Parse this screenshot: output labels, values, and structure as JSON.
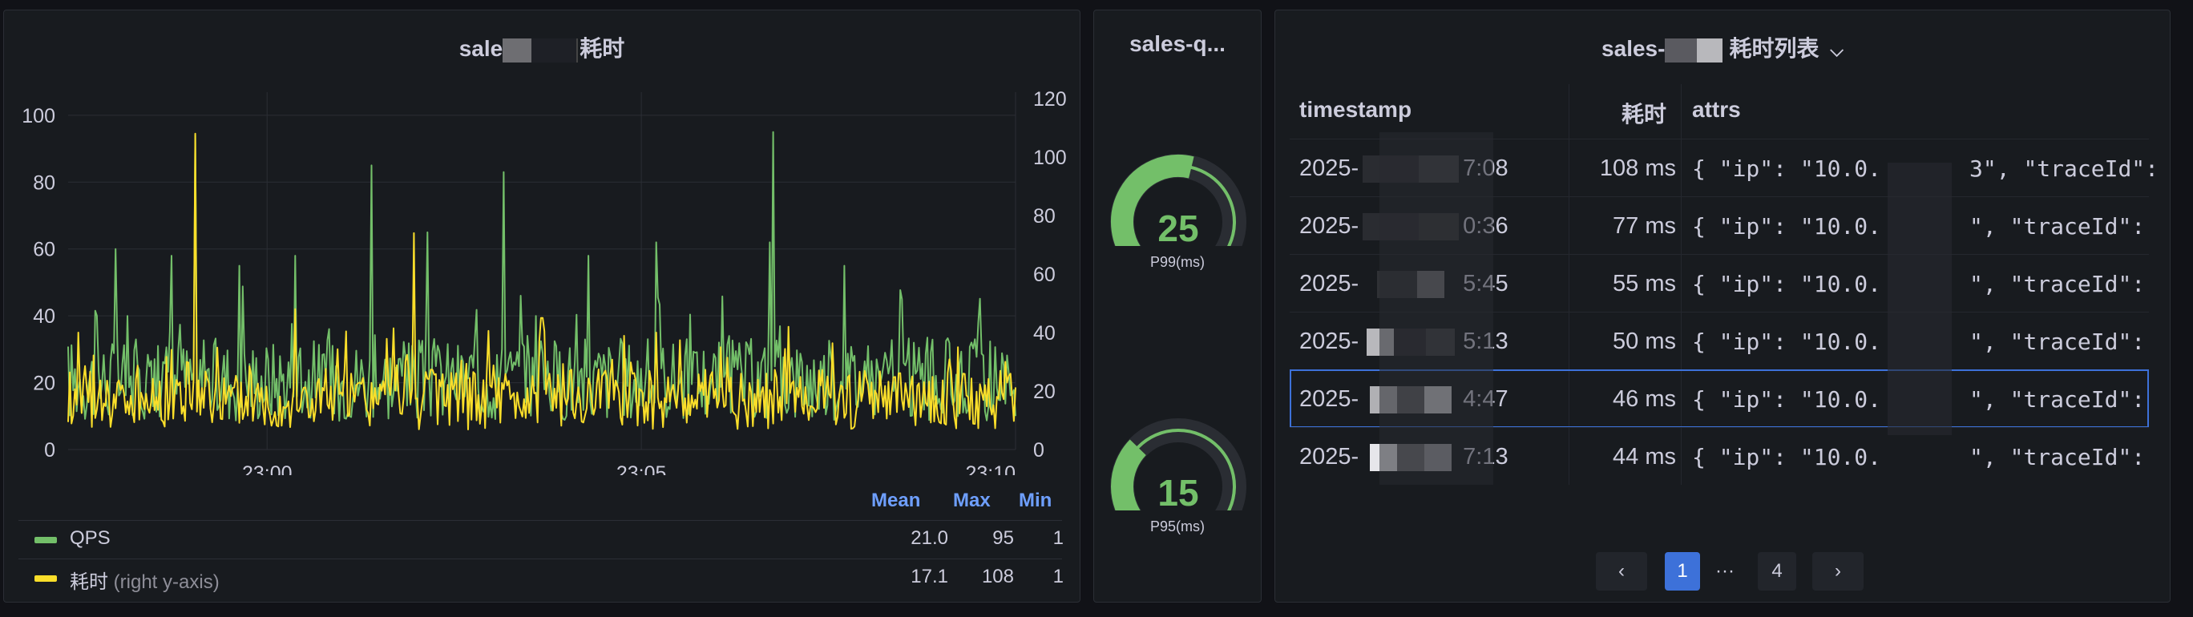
{
  "colors": {
    "qps": "#73bf69",
    "latency": "#fade2a",
    "accent": "#3d71d9",
    "gauge": "#73bf69"
  },
  "chart_panel": {
    "title_prefix": "sale",
    "title_suffix": "耗时",
    "legend_headers": {
      "mean": "Mean",
      "max": "Max",
      "min": "Min"
    },
    "legend": [
      {
        "name": "QPS",
        "suffix": "",
        "mean": "21.0",
        "max": "95",
        "min": "1",
        "color": "#73bf69"
      },
      {
        "name": "耗时",
        "suffix": "(right y-axis)",
        "mean": "17.1",
        "max": "108",
        "min": "1",
        "color": "#fade2a"
      }
    ]
  },
  "chart_data": {
    "type": "line",
    "title": "sale… 耗时",
    "x_ticks": [
      "23:00",
      "23:05",
      "23:10"
    ],
    "left_axis": {
      "ticks": [
        "0",
        "20",
        "40",
        "60",
        "80",
        "100"
      ],
      "ylim": [
        0,
        105
      ]
    },
    "right_axis": {
      "ticks": [
        "0",
        "20",
        "40",
        "60",
        "80",
        "100",
        "120"
      ],
      "ylim": [
        0,
        120
      ]
    },
    "series": [
      {
        "name": "QPS",
        "axis": "left",
        "mean": 21.0,
        "max": 95,
        "min": 1,
        "spikes": [
          [
            0.03,
            40
          ],
          [
            0.05,
            60
          ],
          [
            0.11,
            58
          ],
          [
            0.135,
            94
          ],
          [
            0.18,
            55
          ],
          [
            0.24,
            58
          ],
          [
            0.32,
            85
          ],
          [
            0.38,
            65
          ],
          [
            0.46,
            83
          ],
          [
            0.55,
            58
          ],
          [
            0.62,
            62
          ],
          [
            0.74,
            62
          ],
          [
            0.745,
            95
          ],
          [
            0.82,
            55
          ],
          [
            0.88,
            45
          ],
          [
            0.96,
            38
          ]
        ]
      },
      {
        "name": "耗时",
        "axis": "right",
        "mean": 17.1,
        "max": 108,
        "min": 1,
        "spikes": [
          [
            0.01,
            40
          ],
          [
            0.135,
            108
          ],
          [
            0.24,
            48
          ],
          [
            0.365,
            74
          ],
          [
            0.5,
            45
          ],
          [
            0.62,
            40
          ],
          [
            0.76,
            42
          ],
          [
            0.94,
            35
          ],
          [
            0.99,
            30
          ]
        ]
      }
    ]
  },
  "gauge_panel": {
    "title": "sales-q...",
    "gauges": [
      {
        "value": "25",
        "label": "P99(ms)",
        "fraction": 0.55
      },
      {
        "value": "15",
        "label": "P95(ms)",
        "fraction": 0.33
      }
    ]
  },
  "table_panel": {
    "title_prefix": "sales-",
    "title_suffix": "耗时列表",
    "columns": {
      "timestamp": "timestamp",
      "latency": "耗时",
      "attrs": "attrs"
    },
    "rows": [
      {
        "ts_start": "2025-",
        "ts_end": "7:08",
        "latency": "108 ms",
        "attrs_a": "{ \"ip\": \"10.0.",
        "attrs_b": "3\", \"traceId\":"
      },
      {
        "ts_start": "2025-",
        "ts_end": "0:36",
        "latency": "77 ms",
        "attrs_a": "{ \"ip\": \"10.0.",
        "attrs_b": "\", \"traceId\":"
      },
      {
        "ts_start": "2025-",
        "ts_end": "5:45",
        "latency": "55 ms",
        "attrs_a": "{ \"ip\": \"10.0.",
        "attrs_b": "\", \"traceId\":"
      },
      {
        "ts_start": "2025-",
        "ts_end": "5:13",
        "latency": "50 ms",
        "attrs_a": "{ \"ip\": \"10.0.",
        "attrs_b": "\", \"traceId\":"
      },
      {
        "ts_start": "2025-",
        "ts_end": "4:47",
        "latency": "46 ms",
        "attrs_a": "{ \"ip\": \"10.0.",
        "attrs_b": "\", \"traceId\":"
      },
      {
        "ts_start": "2025-",
        "ts_end": "7:13",
        "latency": "44 ms",
        "attrs_a": "{ \"ip\": \"10.0.",
        "attrs_b": "\", \"traceId\":"
      }
    ],
    "pagination": {
      "prev": "‹",
      "current": "1",
      "ellipsis": "···",
      "last": "4",
      "next": "›"
    }
  }
}
